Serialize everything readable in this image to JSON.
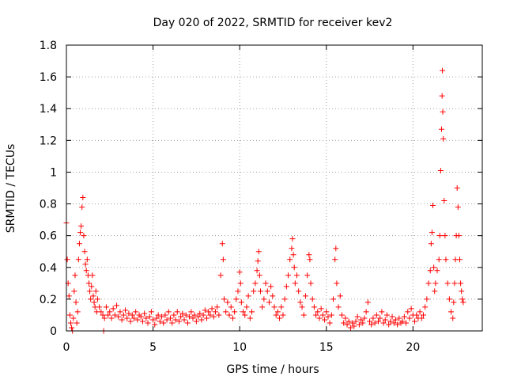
{
  "chart_data": {
    "type": "scatter",
    "title": "Day 020 of 2022, SRMTID for receiver kev2",
    "xlabel": "GPS time / hours",
    "ylabel": "SRMTID / TECUs",
    "xlim": [
      0,
      24
    ],
    "ylim": [
      0,
      1.8
    ],
    "xticks": [
      0,
      5,
      10,
      15,
      20
    ],
    "xtick_labels": [
      "0",
      "5",
      "10",
      "15",
      "20"
    ],
    "yticks": [
      0,
      0.2,
      0.4,
      0.6,
      0.8,
      1.0,
      1.2,
      1.4,
      1.6,
      1.8
    ],
    "ytick_labels": [
      "0",
      "0.2",
      "0.4",
      "0.6",
      "0.8",
      "1",
      "1.2",
      "1.4",
      "1.6",
      "1.8"
    ],
    "grid": true,
    "marker": "+",
    "color": "#ff0000",
    "series": [
      {
        "name": "SRMTID",
        "points": [
          [
            0.0,
            0.68
          ],
          [
            0.05,
            0.45
          ],
          [
            0.1,
            0.3
          ],
          [
            0.15,
            0.22
          ],
          [
            0.2,
            0.1
          ],
          [
            0.25,
            0.05
          ],
          [
            0.3,
            0.02
          ],
          [
            0.35,
            0.0
          ],
          [
            0.4,
            0.08
          ],
          [
            0.45,
            0.25
          ],
          [
            0.5,
            0.35
          ],
          [
            0.55,
            0.18
          ],
          [
            0.6,
            0.05
          ],
          [
            0.65,
            0.12
          ],
          [
            0.7,
            0.45
          ],
          [
            0.75,
            0.55
          ],
          [
            0.8,
            0.62
          ],
          [
            0.85,
            0.66
          ],
          [
            0.9,
            0.78
          ],
          [
            0.95,
            0.84
          ],
          [
            1.0,
            0.6
          ],
          [
            1.05,
            0.5
          ],
          [
            1.1,
            0.42
          ],
          [
            1.15,
            0.38
          ],
          [
            1.2,
            0.45
          ],
          [
            1.25,
            0.35
          ],
          [
            1.3,
            0.3
          ],
          [
            1.35,
            0.25
          ],
          [
            1.4,
            0.2
          ],
          [
            1.45,
            0.28
          ],
          [
            1.5,
            0.35
          ],
          [
            1.55,
            0.22
          ],
          [
            1.6,
            0.18
          ],
          [
            1.65,
            0.15
          ],
          [
            1.7,
            0.25
          ],
          [
            1.75,
            0.12
          ],
          [
            1.8,
            0.2
          ],
          [
            1.9,
            0.15
          ],
          [
            2.0,
            0.12
          ],
          [
            2.1,
            0.1
          ],
          [
            2.15,
            0.0
          ],
          [
            2.2,
            0.08
          ],
          [
            2.3,
            0.15
          ],
          [
            2.4,
            0.1
          ],
          [
            2.5,
            0.12
          ],
          [
            2.6,
            0.08
          ],
          [
            2.7,
            0.14
          ],
          [
            2.8,
            0.1
          ],
          [
            2.9,
            0.16
          ],
          [
            3.0,
            0.09
          ],
          [
            3.1,
            0.12
          ],
          [
            3.2,
            0.07
          ],
          [
            3.3,
            0.1
          ],
          [
            3.4,
            0.13
          ],
          [
            3.5,
            0.08
          ],
          [
            3.6,
            0.11
          ],
          [
            3.7,
            0.06
          ],
          [
            3.8,
            0.1
          ],
          [
            3.9,
            0.08
          ],
          [
            4.0,
            0.12
          ],
          [
            4.1,
            0.07
          ],
          [
            4.2,
            0.1
          ],
          [
            4.3,
            0.09
          ],
          [
            4.4,
            0.06
          ],
          [
            4.5,
            0.11
          ],
          [
            4.6,
            0.08
          ],
          [
            4.7,
            0.05
          ],
          [
            4.8,
            0.09
          ],
          [
            4.9,
            0.12
          ],
          [
            5.0,
            0.07
          ],
          [
            5.1,
            0.04
          ],
          [
            5.2,
            0.08
          ],
          [
            5.3,
            0.1
          ],
          [
            5.4,
            0.06
          ],
          [
            5.5,
            0.09
          ],
          [
            5.6,
            0.05
          ],
          [
            5.7,
            0.1
          ],
          [
            5.8,
            0.07
          ],
          [
            5.9,
            0.12
          ],
          [
            6.0,
            0.08
          ],
          [
            6.1,
            0.05
          ],
          [
            6.2,
            0.1
          ],
          [
            6.3,
            0.07
          ],
          [
            6.4,
            0.12
          ],
          [
            6.5,
            0.06
          ],
          [
            6.6,
            0.09
          ],
          [
            6.7,
            0.11
          ],
          [
            6.8,
            0.07
          ],
          [
            6.9,
            0.1
          ],
          [
            7.0,
            0.05
          ],
          [
            7.1,
            0.09
          ],
          [
            7.2,
            0.12
          ],
          [
            7.3,
            0.08
          ],
          [
            7.4,
            0.1
          ],
          [
            7.5,
            0.06
          ],
          [
            7.6,
            0.09
          ],
          [
            7.7,
            0.11
          ],
          [
            7.8,
            0.07
          ],
          [
            7.9,
            0.1
          ],
          [
            8.0,
            0.13
          ],
          [
            8.1,
            0.08
          ],
          [
            8.2,
            0.12
          ],
          [
            8.3,
            0.1
          ],
          [
            8.4,
            0.14
          ],
          [
            8.5,
            0.09
          ],
          [
            8.6,
            0.12
          ],
          [
            8.7,
            0.15
          ],
          [
            8.8,
            0.1
          ],
          [
            8.9,
            0.35
          ],
          [
            9.0,
            0.55
          ],
          [
            9.05,
            0.45
          ],
          [
            9.1,
            0.2
          ],
          [
            9.2,
            0.12
          ],
          [
            9.3,
            0.18
          ],
          [
            9.4,
            0.1
          ],
          [
            9.5,
            0.15
          ],
          [
            9.6,
            0.08
          ],
          [
            9.7,
            0.12
          ],
          [
            9.8,
            0.2
          ],
          [
            9.9,
            0.25
          ],
          [
            10.0,
            0.37
          ],
          [
            10.05,
            0.3
          ],
          [
            10.1,
            0.18
          ],
          [
            10.2,
            0.12
          ],
          [
            10.3,
            0.1
          ],
          [
            10.4,
            0.15
          ],
          [
            10.5,
            0.22
          ],
          [
            10.6,
            0.08
          ],
          [
            10.7,
            0.12
          ],
          [
            10.8,
            0.25
          ],
          [
            10.9,
            0.3
          ],
          [
            11.0,
            0.38
          ],
          [
            11.05,
            0.44
          ],
          [
            11.1,
            0.5
          ],
          [
            11.15,
            0.35
          ],
          [
            11.2,
            0.25
          ],
          [
            11.3,
            0.15
          ],
          [
            11.4,
            0.2
          ],
          [
            11.5,
            0.3
          ],
          [
            11.6,
            0.25
          ],
          [
            11.7,
            0.18
          ],
          [
            11.8,
            0.28
          ],
          [
            11.9,
            0.22
          ],
          [
            12.0,
            0.15
          ],
          [
            12.1,
            0.1
          ],
          [
            12.2,
            0.12
          ],
          [
            12.3,
            0.08
          ],
          [
            12.4,
            0.15
          ],
          [
            12.5,
            0.1
          ],
          [
            12.6,
            0.2
          ],
          [
            12.7,
            0.28
          ],
          [
            12.8,
            0.35
          ],
          [
            12.9,
            0.45
          ],
          [
            13.0,
            0.52
          ],
          [
            13.05,
            0.58
          ],
          [
            13.1,
            0.48
          ],
          [
            13.15,
            0.4
          ],
          [
            13.2,
            0.3
          ],
          [
            13.3,
            0.35
          ],
          [
            13.4,
            0.25
          ],
          [
            13.5,
            0.18
          ],
          [
            13.6,
            0.15
          ],
          [
            13.7,
            0.1
          ],
          [
            13.8,
            0.22
          ],
          [
            13.9,
            0.35
          ],
          [
            14.0,
            0.48
          ],
          [
            14.05,
            0.45
          ],
          [
            14.1,
            0.3
          ],
          [
            14.2,
            0.2
          ],
          [
            14.3,
            0.15
          ],
          [
            14.4,
            0.1
          ],
          [
            14.5,
            0.12
          ],
          [
            14.6,
            0.08
          ],
          [
            14.7,
            0.14
          ],
          [
            14.8,
            0.1
          ],
          [
            14.9,
            0.07
          ],
          [
            15.0,
            0.12
          ],
          [
            15.1,
            0.09
          ],
          [
            15.2,
            0.05
          ],
          [
            15.3,
            0.1
          ],
          [
            15.4,
            0.2
          ],
          [
            15.5,
            0.45
          ],
          [
            15.55,
            0.52
          ],
          [
            15.6,
            0.3
          ],
          [
            15.7,
            0.15
          ],
          [
            15.8,
            0.22
          ],
          [
            15.9,
            0.1
          ],
          [
            16.0,
            0.05
          ],
          [
            16.1,
            0.08
          ],
          [
            16.2,
            0.04
          ],
          [
            16.3,
            0.06
          ],
          [
            16.4,
            0.02
          ],
          [
            16.5,
            0.05
          ],
          [
            16.6,
            0.03
          ],
          [
            16.7,
            0.06
          ],
          [
            16.8,
            0.09
          ],
          [
            16.9,
            0.04
          ],
          [
            17.0,
            0.07
          ],
          [
            17.1,
            0.05
          ],
          [
            17.2,
            0.08
          ],
          [
            17.3,
            0.12
          ],
          [
            17.4,
            0.18
          ],
          [
            17.5,
            0.06
          ],
          [
            17.6,
            0.04
          ],
          [
            17.7,
            0.08
          ],
          [
            17.8,
            0.05
          ],
          [
            17.9,
            0.1
          ],
          [
            18.0,
            0.06
          ],
          [
            18.1,
            0.08
          ],
          [
            18.2,
            0.12
          ],
          [
            18.3,
            0.05
          ],
          [
            18.4,
            0.07
          ],
          [
            18.5,
            0.1
          ],
          [
            18.6,
            0.04
          ],
          [
            18.7,
            0.06
          ],
          [
            18.8,
            0.09
          ],
          [
            18.9,
            0.05
          ],
          [
            19.0,
            0.07
          ],
          [
            19.1,
            0.04
          ],
          [
            19.2,
            0.08
          ],
          [
            19.3,
            0.05
          ],
          [
            19.4,
            0.06
          ],
          [
            19.5,
            0.09
          ],
          [
            19.6,
            0.05
          ],
          [
            19.7,
            0.12
          ],
          [
            19.8,
            0.08
          ],
          [
            19.9,
            0.14
          ],
          [
            20.0,
            0.1
          ],
          [
            20.1,
            0.06
          ],
          [
            20.2,
            0.1
          ],
          [
            20.3,
            0.08
          ],
          [
            20.4,
            0.12
          ],
          [
            20.5,
            0.08
          ],
          [
            20.6,
            0.1
          ],
          [
            20.7,
            0.15
          ],
          [
            20.8,
            0.2
          ],
          [
            20.9,
            0.3
          ],
          [
            21.0,
            0.38
          ],
          [
            21.05,
            0.55
          ],
          [
            21.1,
            0.62
          ],
          [
            21.15,
            0.79
          ],
          [
            21.2,
            0.4
          ],
          [
            21.25,
            0.25
          ],
          [
            21.3,
            0.3
          ],
          [
            21.4,
            0.38
          ],
          [
            21.5,
            0.45
          ],
          [
            21.55,
            0.6
          ],
          [
            21.6,
            1.01
          ],
          [
            21.65,
            1.27
          ],
          [
            21.68,
            1.48
          ],
          [
            21.7,
            1.64
          ],
          [
            21.72,
            1.38
          ],
          [
            21.75,
            1.21
          ],
          [
            21.8,
            0.82
          ],
          [
            21.85,
            0.6
          ],
          [
            21.9,
            0.45
          ],
          [
            22.0,
            0.3
          ],
          [
            22.1,
            0.2
          ],
          [
            22.2,
            0.12
          ],
          [
            22.3,
            0.08
          ],
          [
            22.35,
            0.18
          ],
          [
            22.4,
            0.3
          ],
          [
            22.45,
            0.45
          ],
          [
            22.5,
            0.6
          ],
          [
            22.55,
            0.9
          ],
          [
            22.6,
            0.78
          ],
          [
            22.65,
            0.6
          ],
          [
            22.7,
            0.45
          ],
          [
            22.75,
            0.3
          ],
          [
            22.8,
            0.25
          ],
          [
            22.85,
            0.2
          ],
          [
            22.9,
            0.18
          ]
        ]
      }
    ]
  }
}
